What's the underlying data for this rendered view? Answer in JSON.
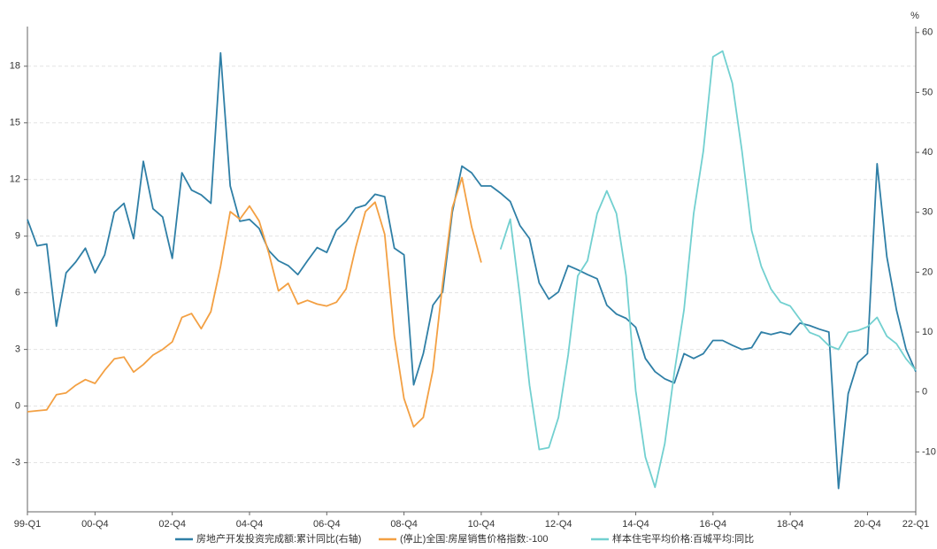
{
  "chart_data": {
    "type": "line",
    "y2unit": "%",
    "xlim": [
      0,
      92
    ],
    "xticks": [
      {
        "value": 0,
        "label": "99-Q1"
      },
      {
        "value": 7,
        "label": "00-Q4"
      },
      {
        "value": 15,
        "label": "02-Q4"
      },
      {
        "value": 23,
        "label": "04-Q4"
      },
      {
        "value": 31,
        "label": "06-Q4"
      },
      {
        "value": 39,
        "label": "08-Q4"
      },
      {
        "value": 47,
        "label": "10-Q4"
      },
      {
        "value": 55,
        "label": "12-Q4"
      },
      {
        "value": 63,
        "label": "14-Q4"
      },
      {
        "value": 71,
        "label": "16-Q4"
      },
      {
        "value": 79,
        "label": "18-Q4"
      },
      {
        "value": 87,
        "label": "20-Q4"
      },
      {
        "value": 92,
        "label": "22-Q1"
      }
    ],
    "ylim": [
      -5.6,
      20.1
    ],
    "yticks": [
      -3,
      0,
      3,
      6,
      9,
      12,
      15,
      18
    ],
    "y2lim": [
      -20,
      61
    ],
    "y2ticks": [
      -10,
      0,
      10,
      20,
      30,
      40,
      50,
      60
    ],
    "grid": true,
    "legend": "bottom",
    "series": [
      {
        "name": "房地产开发投资完成额:累计同比(右轴)",
        "color": "#2f7fa6",
        "axis": "y2",
        "x": [
          0,
          1,
          2,
          3,
          4,
          5,
          6,
          7,
          8,
          9,
          10,
          11,
          12,
          13,
          14,
          15,
          16,
          17,
          18,
          19,
          20,
          21,
          22,
          23,
          24,
          25,
          26,
          27,
          28,
          29,
          30,
          31,
          32,
          33,
          34,
          35,
          36,
          37,
          38,
          39,
          40,
          41,
          42,
          43,
          44,
          45,
          46,
          47,
          48,
          49,
          50,
          51,
          52,
          53,
          54,
          55,
          56,
          57,
          58,
          59,
          60,
          61,
          62,
          63,
          64,
          65,
          66,
          67,
          68,
          69,
          70,
          71,
          72,
          73,
          74,
          75,
          76,
          77,
          78,
          79,
          80,
          81,
          82,
          83,
          84,
          85,
          86,
          87,
          88,
          89,
          90,
          91,
          92
        ],
        "values": [
          28.8,
          24.4,
          24.7,
          11,
          19.9,
          21.7,
          24,
          19.9,
          22.9,
          30,
          31.5,
          25.6,
          38.5,
          30.6,
          29.2,
          22.3,
          36.6,
          33.7,
          32.9,
          31.5,
          56.6,
          34.4,
          28.5,
          28.8,
          27.3,
          23.6,
          21.9,
          21.1,
          19.6,
          21.9,
          24.1,
          23.3,
          27,
          28.5,
          30.7,
          31.2,
          33,
          32.6,
          24,
          22.9,
          1.2,
          6.4,
          14.5,
          16.7,
          30,
          37.7,
          36.6,
          34.4,
          34.4,
          33.2,
          31.8,
          27.8,
          25.6,
          18.2,
          15.5,
          16.7,
          21.1,
          20.4,
          19.6,
          18.9,
          14.5,
          13,
          12.3,
          10.8,
          5.6,
          3.4,
          2.2,
          1.5,
          6.4,
          5.6,
          6.4,
          8.6,
          8.6,
          7.8,
          7.1,
          7.4,
          10,
          9.6,
          10,
          9.6,
          11.5,
          11.1,
          10.5,
          10,
          -16.1,
          -0.3,
          4.9,
          6.4,
          38.1,
          22.6,
          13.7,
          7.1,
          3.4
        ]
      },
      {
        "name": "(停止)全国:房屋销售价格指数:-100",
        "color": "#f3a043",
        "x": [
          0,
          1,
          2,
          3,
          4,
          5,
          6,
          7,
          8,
          9,
          10,
          11,
          12,
          13,
          14,
          15,
          16,
          17,
          18,
          19,
          20,
          21,
          22,
          23,
          24,
          25,
          26,
          27,
          28,
          29,
          30,
          31,
          32,
          33,
          34,
          35,
          36,
          37,
          38,
          39,
          40,
          41,
          42,
          43,
          44,
          45,
          46,
          47
        ],
        "values": [
          -0.3,
          -0.25,
          -0.2,
          0.6,
          0.7,
          1.1,
          1.4,
          1.2,
          1.9,
          2.5,
          2.6,
          1.8,
          2.2,
          2.7,
          3.0,
          3.4,
          4.7,
          4.9,
          4.1,
          5,
          7.4,
          10.3,
          9.9,
          10.6,
          9.8,
          8.1,
          6.1,
          6.5,
          5.4,
          5.6,
          5.4,
          5.3,
          5.5,
          6.2,
          8.4,
          10.3,
          10.8,
          9.1,
          3.7,
          0.4,
          -1.1,
          -0.6,
          1.9,
          6.5,
          10.5,
          12.1,
          9.5,
          7.6
        ]
      },
      {
        "name": "样本住宅平均价格:百城平均:同比",
        "color": "#72d0d0",
        "x": [
          49,
          50,
          51,
          52,
          53,
          54,
          55,
          56,
          57,
          58,
          59,
          60,
          61,
          62,
          63,
          64,
          65,
          66,
          67,
          68,
          69,
          70,
          71,
          72,
          73,
          74,
          75,
          76,
          77,
          78,
          79,
          80,
          81,
          82,
          83,
          84,
          85,
          86,
          87,
          88,
          89,
          90,
          91,
          92
        ],
        "values": [
          8.3,
          9.9,
          5.8,
          1.1,
          -2.3,
          -2.2,
          -0.6,
          2.7,
          6.9,
          7.7,
          10.2,
          11.4,
          10.2,
          6.9,
          0.8,
          -2.7,
          -4.3,
          -2,
          1.8,
          5.1,
          10.2,
          13.5,
          18.5,
          18.8,
          17.1,
          13.5,
          9.3,
          7.4,
          6.2,
          5.5,
          5.3,
          4.6,
          3.9,
          3.7,
          3.2,
          3.0,
          3.9,
          4.0,
          4.2,
          4.7,
          3.7,
          3.3,
          2.5,
          1.9
        ]
      }
    ]
  }
}
